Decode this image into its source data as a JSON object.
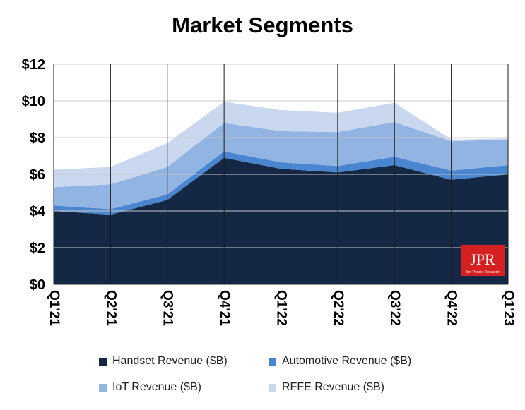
{
  "chart_data": {
    "type": "area",
    "stacked": true,
    "title": "Market Segments",
    "categories": [
      "Q1'21",
      "Q2'21",
      "Q3'21",
      "Q4'21",
      "Q1'22",
      "Q2'22",
      "Q3'22",
      "Q4'22",
      "Q1'23"
    ],
    "y_tick_labels": [
      "$0",
      "$2",
      "$4",
      "$6",
      "$8",
      "$10",
      "$12"
    ],
    "ylim": [
      0,
      12
    ],
    "grid": true,
    "legend_position": "bottom",
    "series": [
      {
        "name": "Handset Revenue ($B)",
        "color": "#142845",
        "values": [
          4.0,
          3.8,
          4.6,
          6.9,
          6.3,
          6.1,
          6.5,
          5.7,
          6.0
        ]
      },
      {
        "name": "Automotive Revenue ($B)",
        "color": "#4a86cf",
        "values": [
          0.3,
          0.3,
          0.3,
          0.35,
          0.35,
          0.35,
          0.45,
          0.5,
          0.5
        ]
      },
      {
        "name": "IoT Revenue ($B)",
        "color": "#92b4e2",
        "values": [
          1.0,
          1.35,
          1.5,
          1.55,
          1.7,
          1.85,
          1.9,
          1.6,
          1.4
        ]
      },
      {
        "name": "RFFE Revenue ($B)",
        "color": "#c9d8ef",
        "values": [
          0.95,
          0.95,
          1.3,
          1.15,
          1.15,
          1.05,
          1.05,
          0.1,
          0.05
        ]
      }
    ]
  },
  "logo": {
    "text": "JPR",
    "subtext": "Jon Peddie Research",
    "color": "#d42020"
  }
}
